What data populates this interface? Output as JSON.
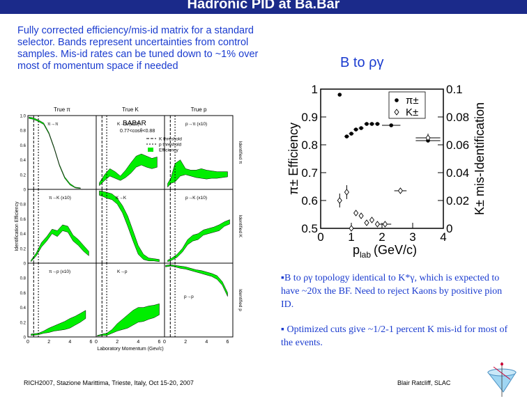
{
  "slide": {
    "title": "Hadronic PID at Ba.Bar",
    "intro": "Fully corrected efficiency/mis-id matrix for a standard selector. Bands represent uncertainties from control samples. Mis-id rates can be tuned down to ~1% over most of momentum space if needed",
    "subhead": "B to ργ",
    "bullets": [
      "▪B to ργ topology identical to K*γ, which is expected to have ~20x the BF. Need to reject Kaons by positive pion ID.",
      "▪ Optimized cuts give ~1/2-1 percent K mis-id for most of the events."
    ],
    "footer_left": "RICH2007, Stazione Marittima, Trieste, Italy, Oct 15-20, 2007",
    "footer_right": "Blair Ratcliff, SLAC",
    "colors": {
      "title_bar": "#1b2a8a",
      "text_blue": "#1a3bcf",
      "band_green": "#00ee00"
    }
  },
  "chart_data": [
    {
      "type": "area",
      "title": "BABAR",
      "cut_label": "0.77<cosθ<0.88",
      "column_headers": [
        "True π",
        "True K",
        "True p"
      ],
      "row_labels": [
        "Identified π",
        "Identified K",
        "Identified p"
      ],
      "ylabel": "Identification Efficiency",
      "xlabel": "Laboratory Momentum (Gev/c)",
      "x_ticks": [
        "0",
        "2",
        "4",
        "6"
      ],
      "y_ticks": [
        "0",
        "0.2",
        "0.4",
        "0.6",
        "0.8",
        "1.0"
      ],
      "panel_labels": [
        [
          "π→π",
          "K→π (x10)",
          "p→π (x10)"
        ],
        [
          "π→K (x10)",
          "K→K",
          "p→K (x10)"
        ],
        [
          "π→p (x10)",
          "K→p",
          "p→p"
        ]
      ],
      "legend": [
        "K threshold",
        "p threshold",
        "Efficiency"
      ],
      "legend_placement": "top-right",
      "xlim": [
        0,
        6.5
      ],
      "ylim": [
        0,
        1.0
      ],
      "panels": [
        [
          {
            "x": [
              0.1,
              0.5,
              1,
              1.5,
              2,
              2.5,
              3,
              3.5,
              4,
              4.5,
              5
            ],
            "lo": [
              0.96,
              0.95,
              0.92,
              0.88,
              0.75,
              0.55,
              0.32,
              0.15,
              0.06,
              0.02,
              0.01
            ],
            "hi": [
              0.98,
              0.97,
              0.94,
              0.9,
              0.77,
              0.57,
              0.34,
              0.17,
              0.08,
              0.03,
              0.02
            ]
          },
          {
            "x": [
              0.3,
              0.8,
              1.3,
              1.8,
              2.3,
              2.8,
              3.3,
              3.8,
              4.3,
              4.8,
              5.3,
              5.8
            ],
            "lo": [
              0.05,
              0.12,
              0.18,
              0.15,
              0.12,
              0.16,
              0.22,
              0.3,
              0.33,
              0.3,
              0.28,
              0.3
            ],
            "hi": [
              0.09,
              0.2,
              0.28,
              0.24,
              0.18,
              0.26,
              0.36,
              0.45,
              0.48,
              0.45,
              0.42,
              0.44
            ]
          },
          {
            "x": [
              0.3,
              0.6,
              1,
              1.5,
              2,
              2.5,
              3,
              3.5,
              4,
              4.5,
              5,
              5.5,
              6
            ],
            "lo": [
              0.03,
              0.08,
              0.1,
              0.18,
              0.2,
              0.18,
              0.16,
              0.15,
              0.14,
              0.15,
              0.15,
              0.16,
              0.17
            ],
            "hi": [
              0.08,
              0.15,
              0.35,
              0.4,
              0.28,
              0.26,
              0.26,
              0.28,
              0.26,
              0.25,
              0.24,
              0.24,
              0.24
            ]
          }
        ],
        [
          {
            "x": [
              0.3,
              0.8,
              1.3,
              1.8,
              2.3,
              2.8,
              3.3,
              3.8,
              4.3,
              4.8,
              5.3,
              5.8
            ],
            "lo": [
              0.02,
              0.1,
              0.22,
              0.3,
              0.4,
              0.36,
              0.44,
              0.42,
              0.3,
              0.24,
              0.16,
              0.1
            ],
            "hi": [
              0.04,
              0.14,
              0.28,
              0.36,
              0.46,
              0.44,
              0.52,
              0.5,
              0.38,
              0.32,
              0.24,
              0.16
            ]
          },
          {
            "x": [
              0.3,
              0.7,
              1,
              1.5,
              2,
              2.5,
              3,
              3.5,
              4,
              4.5,
              5,
              5.5,
              6
            ],
            "lo": [
              0.92,
              0.9,
              0.88,
              0.86,
              0.8,
              0.68,
              0.5,
              0.3,
              0.12,
              0.05,
              0.03,
              0.03,
              0.02
            ],
            "hi": [
              0.98,
              0.97,
              0.96,
              0.94,
              0.88,
              0.78,
              0.64,
              0.44,
              0.24,
              0.12,
              0.07,
              0.06,
              0.05
            ]
          },
          {
            "x": [
              0.3,
              0.7,
              1.2,
              1.7,
              2.2,
              2.7,
              3.2,
              3.7,
              4.2,
              4.7,
              5.2,
              5.7,
              6.2
            ],
            "lo": [
              0.02,
              0.04,
              0.08,
              0.15,
              0.25,
              0.3,
              0.32,
              0.38,
              0.4,
              0.42,
              0.44,
              0.5,
              0.53
            ],
            "hi": [
              0.04,
              0.07,
              0.12,
              0.2,
              0.32,
              0.38,
              0.4,
              0.45,
              0.47,
              0.49,
              0.52,
              0.56,
              0.59
            ]
          }
        ],
        [
          {
            "x": [
              0.3,
              1,
              1.5,
              2,
              2.5,
              3,
              3.5,
              4,
              4.5,
              5,
              5.5
            ],
            "lo": [
              0.02,
              0.03,
              0.05,
              0.06,
              0.08,
              0.09,
              0.1,
              0.12,
              0.16,
              0.2,
              0.25
            ],
            "hi": [
              0.04,
              0.05,
              0.08,
              0.12,
              0.15,
              0.18,
              0.21,
              0.25,
              0.28,
              0.32,
              0.36
            ]
          },
          {
            "x": [
              0.1,
              0.6,
              1,
              1.5,
              2,
              2.5,
              3,
              3.5,
              4,
              4.5,
              5,
              5.5,
              6
            ],
            "lo": [
              0.01,
              0.02,
              0.02,
              0.05,
              0.08,
              0.1,
              0.12,
              0.16,
              0.2,
              0.21,
              0.24,
              0.26,
              0.3
            ],
            "hi": [
              0.02,
              0.04,
              0.05,
              0.1,
              0.18,
              0.24,
              0.3,
              0.36,
              0.4,
              0.4,
              0.42,
              0.43,
              0.45
            ]
          },
          {
            "x": [
              0.1,
              0.6,
              1,
              1.5,
              2,
              2.5,
              3,
              3.5,
              4,
              4.5,
              5,
              5.5,
              6
            ],
            "lo": [
              0.95,
              0.96,
              0.95,
              0.93,
              0.92,
              0.9,
              0.88,
              0.86,
              0.84,
              0.82,
              0.78,
              0.7,
              0.55
            ],
            "hi": [
              0.97,
              0.98,
              0.97,
              0.96,
              0.95,
              0.93,
              0.91,
              0.9,
              0.88,
              0.86,
              0.83,
              0.75,
              0.6
            ]
          }
        ]
      ]
    },
    {
      "type": "scatter",
      "xlabel": "p",
      "xlabel_sub": "lab",
      "xlabel_unit": "(GeV/c)",
      "ylabel_left": "π± Efficiency",
      "ylabel_right": "K± mis-Identification",
      "xlim": [
        0,
        4
      ],
      "ylim_left": [
        0.5,
        1.0
      ],
      "ylim_right": [
        0,
        0.1
      ],
      "x_ticks": [
        "0",
        "1",
        "2",
        "3",
        "4"
      ],
      "y_ticks_left": [
        "0.5",
        "0.6",
        "0.7",
        "0.8",
        "0.9",
        "1"
      ],
      "y_ticks_right": [
        "0",
        "0.02",
        "0.04",
        "0.06",
        "0.08",
        "0.1"
      ],
      "legend": [
        "π±",
        "K±"
      ],
      "legend_placement": "top-right",
      "series": [
        {
          "name": "π±",
          "marker": "filled-circle",
          "axis": "left",
          "x": [
            0.62,
            0.85,
            1.0,
            1.15,
            1.32,
            1.5,
            1.67,
            1.85,
            2.3,
            3.5
          ],
          "y": [
            0.98,
            0.83,
            0.84,
            0.855,
            0.86,
            0.875,
            0.875,
            0.875,
            0.87,
            0.815
          ],
          "xerr": [
            0,
            0.08,
            0.08,
            0.08,
            0.08,
            0.08,
            0.08,
            0.08,
            0.3,
            0.4
          ]
        },
        {
          "name": "K±",
          "marker": "open-diamond",
          "axis": "right",
          "x": [
            0.62,
            0.85,
            1.0,
            1.15,
            1.32,
            1.5,
            1.67,
            1.85,
            2.1,
            2.6,
            3.5
          ],
          "y": [
            0.02,
            0.026,
            0.0,
            0.011,
            0.009,
            0.004,
            0.006,
            0.003,
            0.003,
            0.027,
            0.065
          ],
          "xerr": [
            0,
            0,
            0.05,
            0.05,
            0.05,
            0.05,
            0.05,
            0.05,
            0.2,
            0.2,
            0.4
          ],
          "yerr": [
            0.005,
            0.005,
            0.002,
            0.002,
            0.002,
            0.002,
            0.002,
            0.002,
            0.002,
            0,
            0.003
          ]
        }
      ]
    }
  ]
}
